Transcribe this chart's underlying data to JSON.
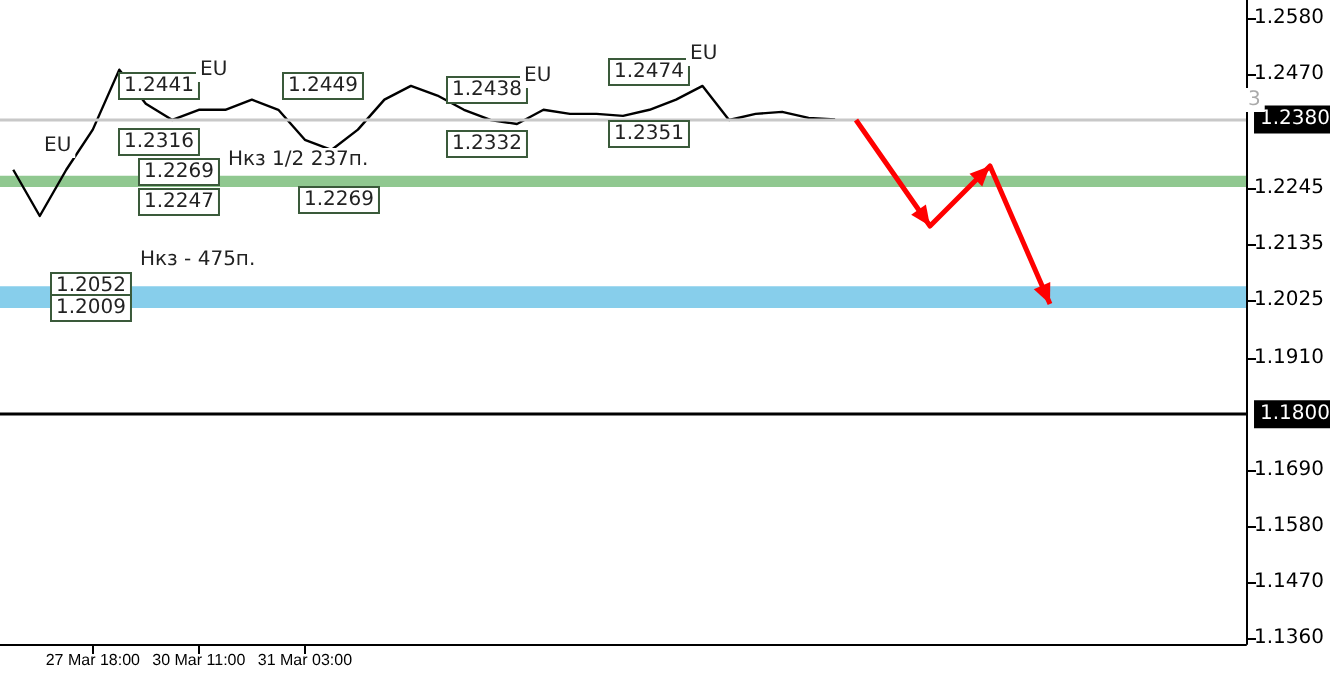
{
  "chart_data": {
    "type": "line",
    "grid": false,
    "marker": "none",
    "categories": [
      null,
      null,
      null,
      "27 Mar 18:00",
      null,
      null,
      null,
      "30 Mar 11:00",
      null,
      null,
      null,
      "31 Mar 03:00",
      null,
      null,
      null,
      null,
      null,
      null,
      null,
      null,
      null,
      null,
      null,
      null,
      null,
      null,
      null,
      null,
      null,
      null,
      null,
      null,
      null,
      null,
      null,
      null,
      null,
      null,
      null,
      null,
      null,
      null,
      null,
      null,
      null,
      null,
      null
    ],
    "ylim": [
      1.1348,
      1.2615
    ],
    "yticks": [
      {
        "value": 1.136,
        "label": "1.1360"
      },
      {
        "value": 1.147,
        "label": "1.1470"
      },
      {
        "value": 1.158,
        "label": "1.1580"
      },
      {
        "value": 1.169,
        "label": "1.1690"
      },
      {
        "value": 1.191,
        "label": "1.1910"
      },
      {
        "value": 1.2025,
        "label": "1.2025"
      },
      {
        "value": 1.2135,
        "label": "1.2135"
      },
      {
        "value": 1.2245,
        "label": "1.2245"
      },
      {
        "value": 1.247,
        "label": "1.2470"
      },
      {
        "value": 1.258,
        "label": "1.2580"
      }
    ],
    "series": [
      {
        "color": "#000000",
        "values": [
          1.2281,
          1.219,
          1.2281,
          1.236,
          1.2478,
          1.2411,
          1.2379,
          1.2399,
          1.2399,
          1.2419,
          1.2399,
          1.234,
          1.232,
          1.236,
          1.2419,
          1.2446,
          1.2427,
          1.2399,
          1.2379,
          1.2371,
          1.2399,
          1.2391,
          1.2391,
          1.2387,
          1.2399,
          1.2419,
          1.2446,
          1.2379,
          1.2391,
          1.2395,
          1.2383,
          1.238,
          null,
          null,
          null,
          null,
          null,
          null,
          null,
          null,
          null,
          null,
          null,
          null,
          null,
          null,
          null
        ]
      }
    ],
    "ref_lines": [
      {
        "axis": "y",
        "value": 1.18,
        "label": "1.1800",
        "color": "#000000"
      },
      {
        "axis": "y",
        "value": 1.238,
        "label": "1.2380",
        "color": "#c8c8c8"
      }
    ],
    "bands": [
      {
        "axis": "y",
        "from": 1.2247,
        "to": 1.2269,
        "color": "#90c890"
      },
      {
        "axis": "y",
        "from": 1.2009,
        "to": 1.2052,
        "color": "#87ceeb"
      }
    ],
    "annotations": [
      "1.2441",
      "1.2316",
      "1.2269",
      "1.2247",
      "1.2449",
      "1.2269",
      "1.2438",
      "1.2332",
      "1.2474",
      "1.2351",
      "1.2052",
      "1.2009",
      "EU",
      "EU",
      "EU",
      "EU",
      "Нкз - 475п.",
      "Нкз 1/2 237п.",
      "3"
    ]
  }
}
